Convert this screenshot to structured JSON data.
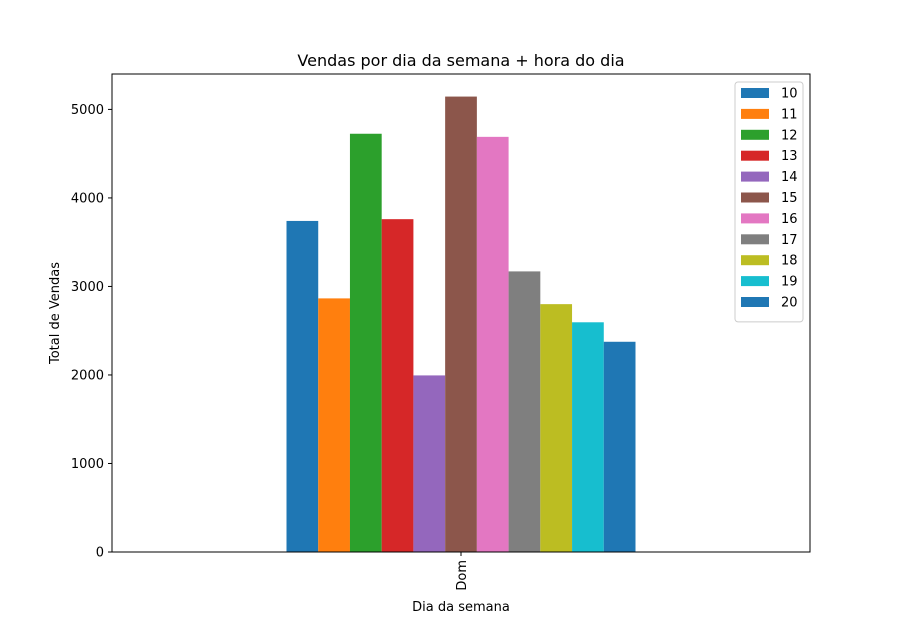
{
  "chart_data": {
    "type": "bar",
    "title": "Vendas por dia da semana + hora do dia",
    "xlabel": "Dia da semana",
    "ylabel": "Total de Vendas",
    "categories": [
      "Dom"
    ],
    "ylim": [
      0,
      5400
    ],
    "yticks": [
      0,
      1000,
      2000,
      3000,
      4000,
      5000
    ],
    "legend_position": "top-right",
    "grid": false,
    "series": [
      {
        "name": "10",
        "color": "#1f77b4",
        "values": [
          3740
        ]
      },
      {
        "name": "11",
        "color": "#ff7f0e",
        "values": [
          2865
        ]
      },
      {
        "name": "12",
        "color": "#2ca02c",
        "values": [
          4725
        ]
      },
      {
        "name": "13",
        "color": "#d62728",
        "values": [
          3760
        ]
      },
      {
        "name": "14",
        "color": "#9467bd",
        "values": [
          1995
        ]
      },
      {
        "name": "15",
        "color": "#8c564b",
        "values": [
          5145
        ]
      },
      {
        "name": "16",
        "color": "#e377c2",
        "values": [
          4690
        ]
      },
      {
        "name": "17",
        "color": "#7f7f7f",
        "values": [
          3170
        ]
      },
      {
        "name": "18",
        "color": "#bcbd22",
        "values": [
          2800
        ]
      },
      {
        "name": "19",
        "color": "#17becf",
        "values": [
          2595
        ]
      },
      {
        "name": "20",
        "color": "#1f77b4",
        "values": [
          2375
        ]
      }
    ]
  }
}
